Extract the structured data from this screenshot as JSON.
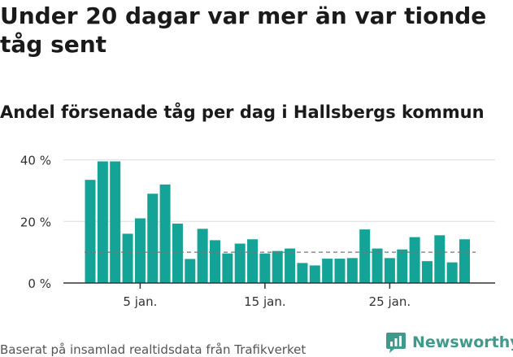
{
  "title": "Under 20 dagar var mer än var tionde tåg sent",
  "subtitle": "Andel försenade tåg per dag i Hallsbergs kommun",
  "source": "Baserat på insamlad realtidsdata från Trafikverket",
  "brand": {
    "name": "Newsworthy",
    "icon": "newsworthy-logo-icon",
    "color": "#3f9a8c"
  },
  "colors": {
    "bar": "#14a497",
    "grid": "#dddddd",
    "axis": "#333333",
    "reference": "#777777"
  },
  "chart_data": {
    "type": "bar",
    "title": "Andel försenade tåg per dag i Hallsbergs kommun",
    "xlabel": "",
    "ylabel": "",
    "x": [
      1,
      2,
      3,
      4,
      5,
      6,
      7,
      8,
      9,
      10,
      11,
      12,
      13,
      14,
      15,
      16,
      17,
      18,
      19,
      20,
      21,
      22,
      23,
      24,
      25,
      26,
      27,
      28,
      29,
      30,
      31
    ],
    "values": [
      33.5,
      39.5,
      39.5,
      16,
      21,
      29,
      32,
      19.3,
      7.8,
      17.6,
      13.9,
      9.6,
      12.8,
      14.2,
      9.6,
      10.4,
      11.2,
      6.5,
      5.7,
      7.9,
      7.9,
      8.1,
      17.4,
      11.2,
      8.1,
      10.9,
      14.9,
      7.1,
      15.5,
      6.7,
      14.2
    ],
    "reference_line": 10,
    "ylim": [
      0,
      42
    ],
    "yticks": [
      0,
      20,
      40
    ],
    "ytick_labels": [
      "0 %",
      "20 %",
      "40 %"
    ],
    "xticks": [
      5,
      15,
      25
    ],
    "xtick_labels": [
      "5 jan.",
      "15 jan.",
      "25 jan."
    ],
    "grid": true
  }
}
